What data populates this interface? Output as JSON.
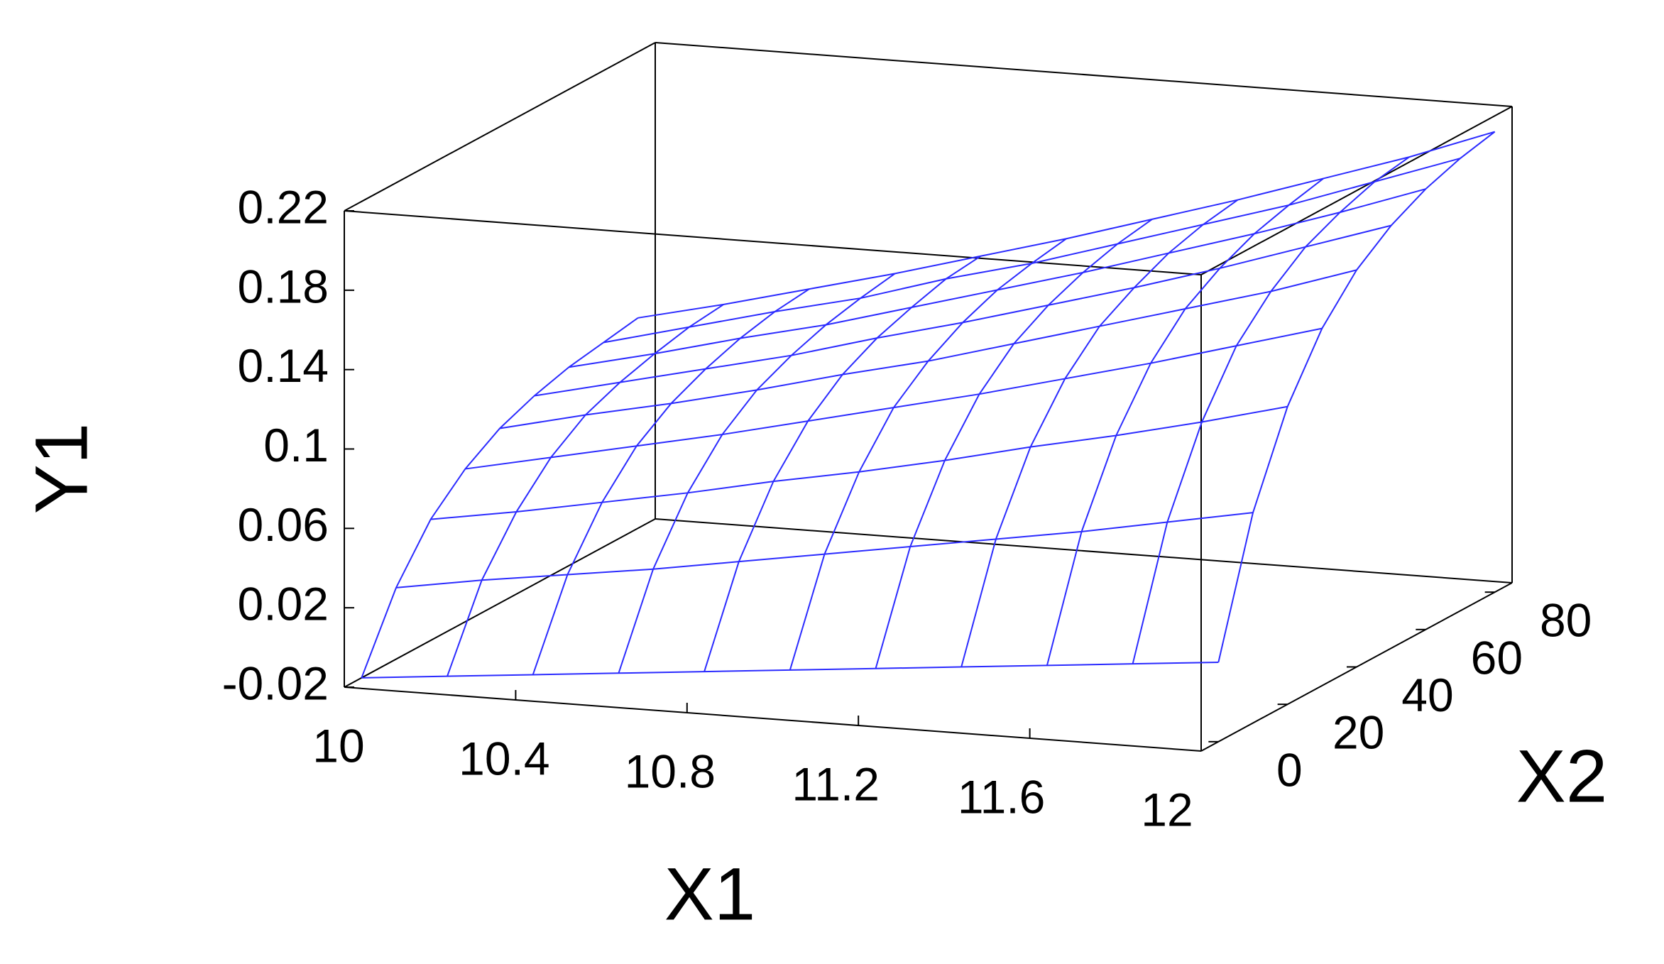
{
  "chart_data": {
    "type": "surface",
    "color": "#2b2bff",
    "x_label": "X1",
    "y_label": "Y1",
    "x2_label": "X2",
    "xlim": [
      10,
      12
    ],
    "xticks": [
      10,
      10.4,
      10.8,
      11.2,
      11.6,
      12
    ],
    "x2lim": [
      -5,
      85
    ],
    "x2ticks": [
      0,
      20,
      40,
      60,
      80
    ],
    "ylim": [
      -0.02,
      0.22
    ],
    "yticks": [
      -0.02,
      0.02,
      0.06,
      0.1,
      0.14,
      0.18,
      0.22
    ],
    "x1": [
      10,
      10.2,
      10.4,
      10.6,
      10.8,
      11,
      11.2,
      11.4,
      11.6,
      11.8,
      12
    ],
    "x2": [
      0,
      10,
      20,
      30,
      40,
      50,
      60,
      70,
      80
    ],
    "z": [
      [
        -0.02,
        0.016,
        0.041,
        0.057,
        0.068,
        0.075,
        0.08,
        0.083,
        0.086
      ],
      [
        -0.016,
        0.023,
        0.048,
        0.066,
        0.078,
        0.085,
        0.09,
        0.094,
        0.096
      ],
      [
        -0.012,
        0.029,
        0.056,
        0.075,
        0.087,
        0.095,
        0.101,
        0.105,
        0.107
      ],
      [
        -0.008,
        0.035,
        0.064,
        0.084,
        0.097,
        0.105,
        0.111,
        0.115,
        0.118
      ],
      [
        -0.004,
        0.042,
        0.073,
        0.094,
        0.108,
        0.117,
        0.123,
        0.128,
        0.13
      ],
      [
        0,
        0.049,
        0.081,
        0.104,
        0.118,
        0.128,
        0.135,
        0.139,
        0.142
      ],
      [
        0.004,
        0.056,
        0.09,
        0.114,
        0.13,
        0.14,
        0.147,
        0.152,
        0.155
      ],
      [
        0.008,
        0.063,
        0.1,
        0.125,
        0.142,
        0.152,
        0.16,
        0.165,
        0.168
      ],
      [
        0.012,
        0.07,
        0.109,
        0.136,
        0.154,
        0.165,
        0.173,
        0.178,
        0.182
      ],
      [
        0.016,
        0.078,
        0.119,
        0.148,
        0.166,
        0.179,
        0.187,
        0.193,
        0.196
      ],
      [
        0.02,
        0.086,
        0.13,
        0.16,
        0.18,
        0.193,
        0.202,
        0.208,
        0.212
      ]
    ]
  }
}
